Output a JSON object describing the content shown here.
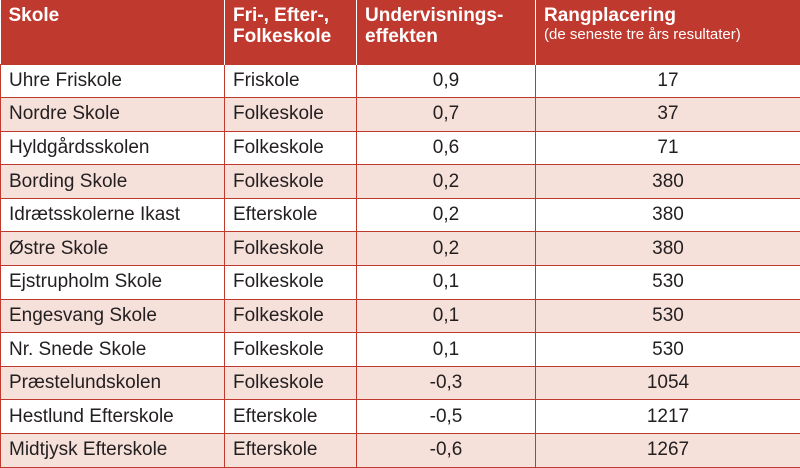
{
  "headers": {
    "school": "Skole",
    "type": "Fri-, Efter-, Folkeskole",
    "effect": "Undervisnings-effekten",
    "rank": "Rangplacering",
    "rank_sub": "(de seneste tre års resultater)"
  },
  "rows": [
    {
      "school": "Uhre Friskole",
      "type": "Friskole",
      "effect": "0,9",
      "rank": "17"
    },
    {
      "school": "Nordre Skole",
      "type": "Folkeskole",
      "effect": "0,7",
      "rank": "37"
    },
    {
      "school": "Hyldgårdsskolen",
      "type": "Folkeskole",
      "effect": "0,6",
      "rank": "71"
    },
    {
      "school": "Bording Skole",
      "type": "Folkeskole",
      "effect": "0,2",
      "rank": "380"
    },
    {
      "school": "Idrætsskolerne Ikast",
      "type": "Efterskole",
      "effect": "0,2",
      "rank": "380"
    },
    {
      "school": "Østre Skole",
      "type": "Folkeskole",
      "effect": "0,2",
      "rank": "380"
    },
    {
      "school": "Ejstrupholm Skole",
      "type": "Folkeskole",
      "effect": "0,1",
      "rank": "530"
    },
    {
      "school": "Engesvang Skole",
      "type": "Folkeskole",
      "effect": "0,1",
      "rank": "530"
    },
    {
      "school": "Nr. Snede Skole",
      "type": "Folkeskole",
      "effect": "0,1",
      "rank": "530"
    },
    {
      "school": "Præstelundskolen",
      "type": "Folkeskole",
      "effect": "-0,3",
      "rank": "1054"
    },
    {
      "school": "Hestlund Efterskole",
      "type": "Efterskole",
      "effect": "-0,5",
      "rank": "1217"
    },
    {
      "school": "Midtjysk Efterskole",
      "type": "Efterskole",
      "effect": "-0,6",
      "rank": "1267"
    }
  ],
  "colors": {
    "header_bg": "#c0392f",
    "stripe_bg": "#f6e0da"
  }
}
